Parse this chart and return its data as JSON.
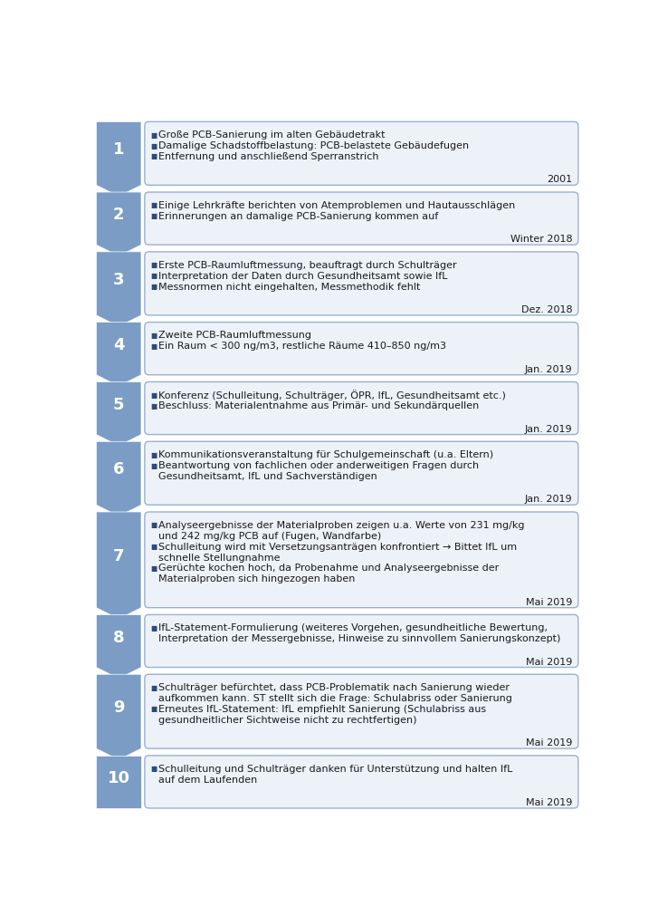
{
  "steps": [
    {
      "number": "1",
      "bullets": [
        "Große PCB-Sanierung im alten Gebäudetrakt",
        "Damalige Schadstoffbelastung: PCB-belastete Gebäudefugen",
        "Entfernung und anschließend Sperranstrich"
      ],
      "date": "2001",
      "n_text_lines": 3
    },
    {
      "number": "2",
      "bullets": [
        "Einige Lehrkräfte berichten von Atemproblemen und Hautausschlägen",
        "Erinnerungen an damalige PCB-Sanierung kommen auf"
      ],
      "date": "Winter 2018",
      "n_text_lines": 2
    },
    {
      "number": "3",
      "bullets": [
        "Erste PCB-Raumluftmessung, beauftragt durch Schulträger",
        "Interpretation der Daten durch Gesundheitsamt sowie IfL",
        "Messnormen nicht eingehalten, Messmethodik fehlt"
      ],
      "date": "Dez. 2018",
      "n_text_lines": 3
    },
    {
      "number": "4",
      "bullets": [
        "Zweite PCB-Raumluftmessung",
        "Ein Raum < 300 ng/m3, restliche Räume 410–850 ng/m3"
      ],
      "date": "Jan. 2019",
      "n_text_lines": 2
    },
    {
      "number": "5",
      "bullets": [
        "Konferenz (Schulleitung, Schulträger, ÖPR, IfL, Gesundheitsamt etc.)",
        "Beschluss: Materialentnahme aus Primär- und Sekundärquellen"
      ],
      "date": "Jan. 2019",
      "n_text_lines": 2
    },
    {
      "number": "6",
      "bullets": [
        "Kommunikationsveranstaltung für Schulgemeinschaft (u.a. Eltern)",
        "Beantwortung von fachlichen oder anderweitigen Fragen durch\nGesundheitsamt, IfL und Sachverständigen"
      ],
      "date": "Jan. 2019",
      "n_text_lines": 3
    },
    {
      "number": "7",
      "bullets": [
        "Analyseergebnisse der Materialproben zeigen u.a. Werte von 231 mg/kg\nund 242 mg/kg PCB auf (Fugen, Wandfarbe)",
        "Schulleitung wird mit Versetzungsanträgen konfrontiert → Bittet IfL um\nschnelle Stellungnahme",
        "Gerüchte kochen hoch, da Probenahme und Analyseergebnisse der\nMaterialproben sich hingezogen haben"
      ],
      "date": "Mai 2019",
      "n_text_lines": 6
    },
    {
      "number": "8",
      "bullets": [
        "IfL-Statement-Formulierung (weiteres Vorgehen, gesundheitliche Bewertung,\nInterpretation der Messergebnisse, Hinweise zu sinnvollem Sanierungskonzept)"
      ],
      "date": "Mai 2019",
      "n_text_lines": 2
    },
    {
      "number": "9",
      "bullets": [
        "Schulträger befürchtet, dass PCB-Problematik nach Sanierung wieder\naufkommen kann. ST stellt sich die Frage: Schulabriss oder Sanierung",
        "Erneutes IfL-Statement: IfL empfiehlt Sanierung (Schulabriss aus\ngesundheitlicher Sichtweise nicht zu rechtfertigen)"
      ],
      "date": "Mai 2019",
      "n_text_lines": 4
    },
    {
      "number": "10",
      "bullets": [
        "Schulleitung und Schulträger danken für Unterstützung und halten IfL\nauf dem Laufenden"
      ],
      "date": "Mai 2019",
      "n_text_lines": 2
    }
  ],
  "arrow_color": "#7b9cc5",
  "arrow_dark_color": "#5b7db1",
  "connector_color": "#a0b8d8",
  "box_fill_color": "#edf2f9",
  "box_edge_color": "#9ab0d0",
  "number_text_color": "#ffffff",
  "bullet_color": "#2e4a7a",
  "date_color": "#1a1a1a",
  "text_color": "#1a1a1a",
  "background_color": "#ffffff",
  "bullet_marker": "■",
  "fig_width": 7.27,
  "fig_height": 10.12,
  "dpi": 100
}
